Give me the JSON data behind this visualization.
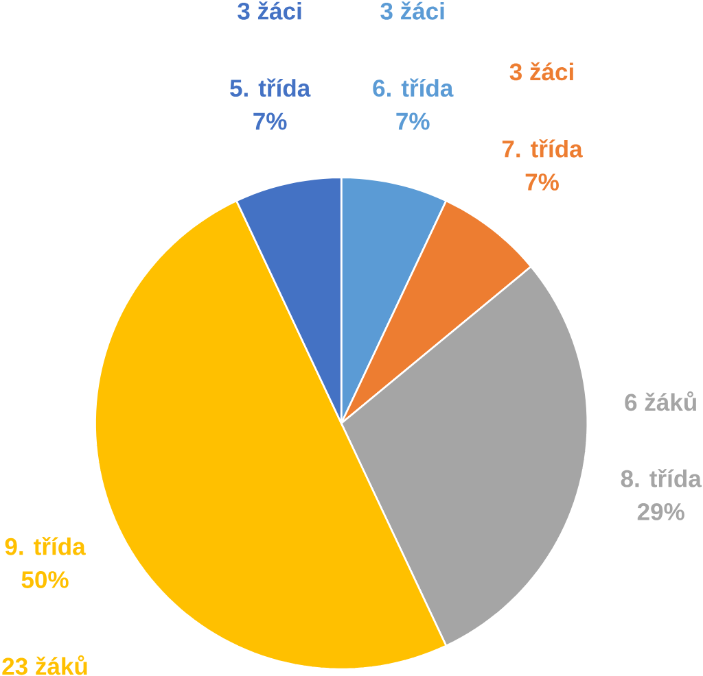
{
  "chart_data": {
    "type": "pie",
    "categories": [
      "6. třída",
      "7. třída",
      "8. třída",
      "9. třída",
      "5. třída"
    ],
    "values": [
      7,
      7,
      29,
      50,
      7
    ],
    "value_labels": [
      "7%",
      "7%",
      "29%",
      "50%",
      "7%"
    ],
    "colors": [
      "#5b9bd5",
      "#ed7d31",
      "#a5a5a5",
      "#ffc000",
      "#4472c4"
    ],
    "annotations": [
      {
        "text": "3 žáci",
        "x": "6. třída"
      },
      {
        "text": "3 žáci",
        "x": "7. třída"
      },
      {
        "text": "6 žáků",
        "x": "8. třída"
      },
      {
        "text": "23 žáků",
        "x": "9. třída"
      },
      {
        "text": "3 žáci",
        "x": "5. třída"
      }
    ]
  }
}
